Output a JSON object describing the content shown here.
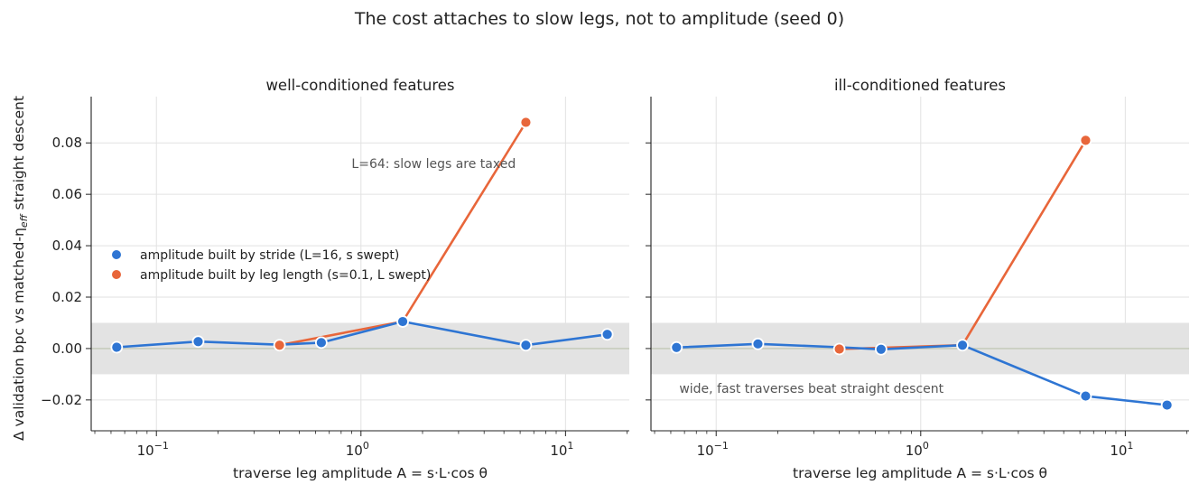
{
  "figure": {
    "suptitle": "The cost attaches to slow legs, not to amplitude (seed 0)"
  },
  "colors": {
    "stride": "#2E75D3",
    "leg_length": "#E8663A",
    "band": "#e3e3e3",
    "zero_line": "#c7ccbd",
    "grid": "#e2e2e2",
    "annotation": "#555555"
  },
  "chart_data": [
    {
      "type": "line",
      "title": "well-conditioned features",
      "xlabel": "traverse leg amplitude A = s·L·cos θ",
      "ylabel": "Δ validation bpc vs matched-η",
      "ylabel_sub": "eff",
      "ylabel_tail": " straight descent",
      "xscale": "log",
      "xlim": [
        0.048,
        20.5
      ],
      "ylim": [
        -0.032,
        0.098
      ],
      "xticks": [
        {
          "value": 0.1,
          "base": "10",
          "exp": "−1"
        },
        {
          "value": 1,
          "base": "10",
          "exp": "0"
        },
        {
          "value": 10,
          "base": "10",
          "exp": "1"
        }
      ],
      "yticks": [
        {
          "value": -0.02,
          "label": "−0.02"
        },
        {
          "value": 0.0,
          "label": "0.00"
        },
        {
          "value": 0.02,
          "label": "0.02"
        },
        {
          "value": 0.04,
          "label": "0.04"
        },
        {
          "value": 0.06,
          "label": "0.06"
        },
        {
          "value": 0.08,
          "label": "0.08"
        }
      ],
      "noise_band": [
        -0.01,
        0.01
      ],
      "grid": true,
      "legend": {
        "placement": "center-left",
        "entries": [
          "amplitude built by stride (L=16, s swept)",
          "amplitude built by leg length (s=0.1, L swept)"
        ]
      },
      "annotation": {
        "text": "L=64: slow legs are taxed",
        "x": 0.9,
        "y": 0.072
      },
      "series": [
        {
          "name": "amplitude built by stride (L=16, s swept)",
          "color_key": "stride",
          "x": [
            0.064,
            0.16,
            0.4,
            0.64,
            1.6,
            6.4,
            16
          ],
          "y": [
            0.0005,
            0.0027,
            0.0015,
            0.0023,
            0.0105,
            0.0013,
            0.0055
          ],
          "markers": [
            true,
            true,
            false,
            true,
            true,
            true,
            true
          ]
        },
        {
          "name": "amplitude built by leg length (s=0.1, L swept)",
          "color_key": "leg_length",
          "x": [
            0.4,
            1.6,
            6.4
          ],
          "y": [
            0.0013,
            0.0105,
            0.088
          ],
          "markers": [
            true,
            false,
            true
          ]
        }
      ]
    },
    {
      "type": "line",
      "title": "ill-conditioned features",
      "xlabel": "traverse leg amplitude A = s·L·cos θ",
      "xscale": "log",
      "xlim": [
        0.048,
        20.5
      ],
      "ylim": [
        -0.032,
        0.098
      ],
      "xticks": [
        {
          "value": 0.1,
          "base": "10",
          "exp": "−1"
        },
        {
          "value": 1,
          "base": "10",
          "exp": "0"
        },
        {
          "value": 10,
          "base": "10",
          "exp": "1"
        }
      ],
      "noise_band": [
        -0.01,
        0.01
      ],
      "grid": true,
      "annotation": {
        "text": "wide, fast traverses beat straight descent",
        "x": 0.066,
        "y": -0.0155
      },
      "series": [
        {
          "name": "amplitude built by stride (L=16, s swept)",
          "color_key": "stride",
          "x": [
            0.064,
            0.16,
            0.4,
            0.64,
            1.6,
            6.4,
            16
          ],
          "y": [
            0.0004,
            0.0018,
            0.0005,
            -0.0003,
            0.0013,
            -0.0185,
            -0.022
          ],
          "markers": [
            true,
            true,
            false,
            true,
            true,
            true,
            true
          ]
        },
        {
          "name": "amplitude built by leg length (s=0.1, L swept)",
          "color_key": "leg_length",
          "x": [
            0.4,
            1.6,
            6.4
          ],
          "y": [
            -0.0002,
            0.0013,
            0.081
          ],
          "markers": [
            true,
            false,
            true
          ]
        }
      ]
    }
  ]
}
